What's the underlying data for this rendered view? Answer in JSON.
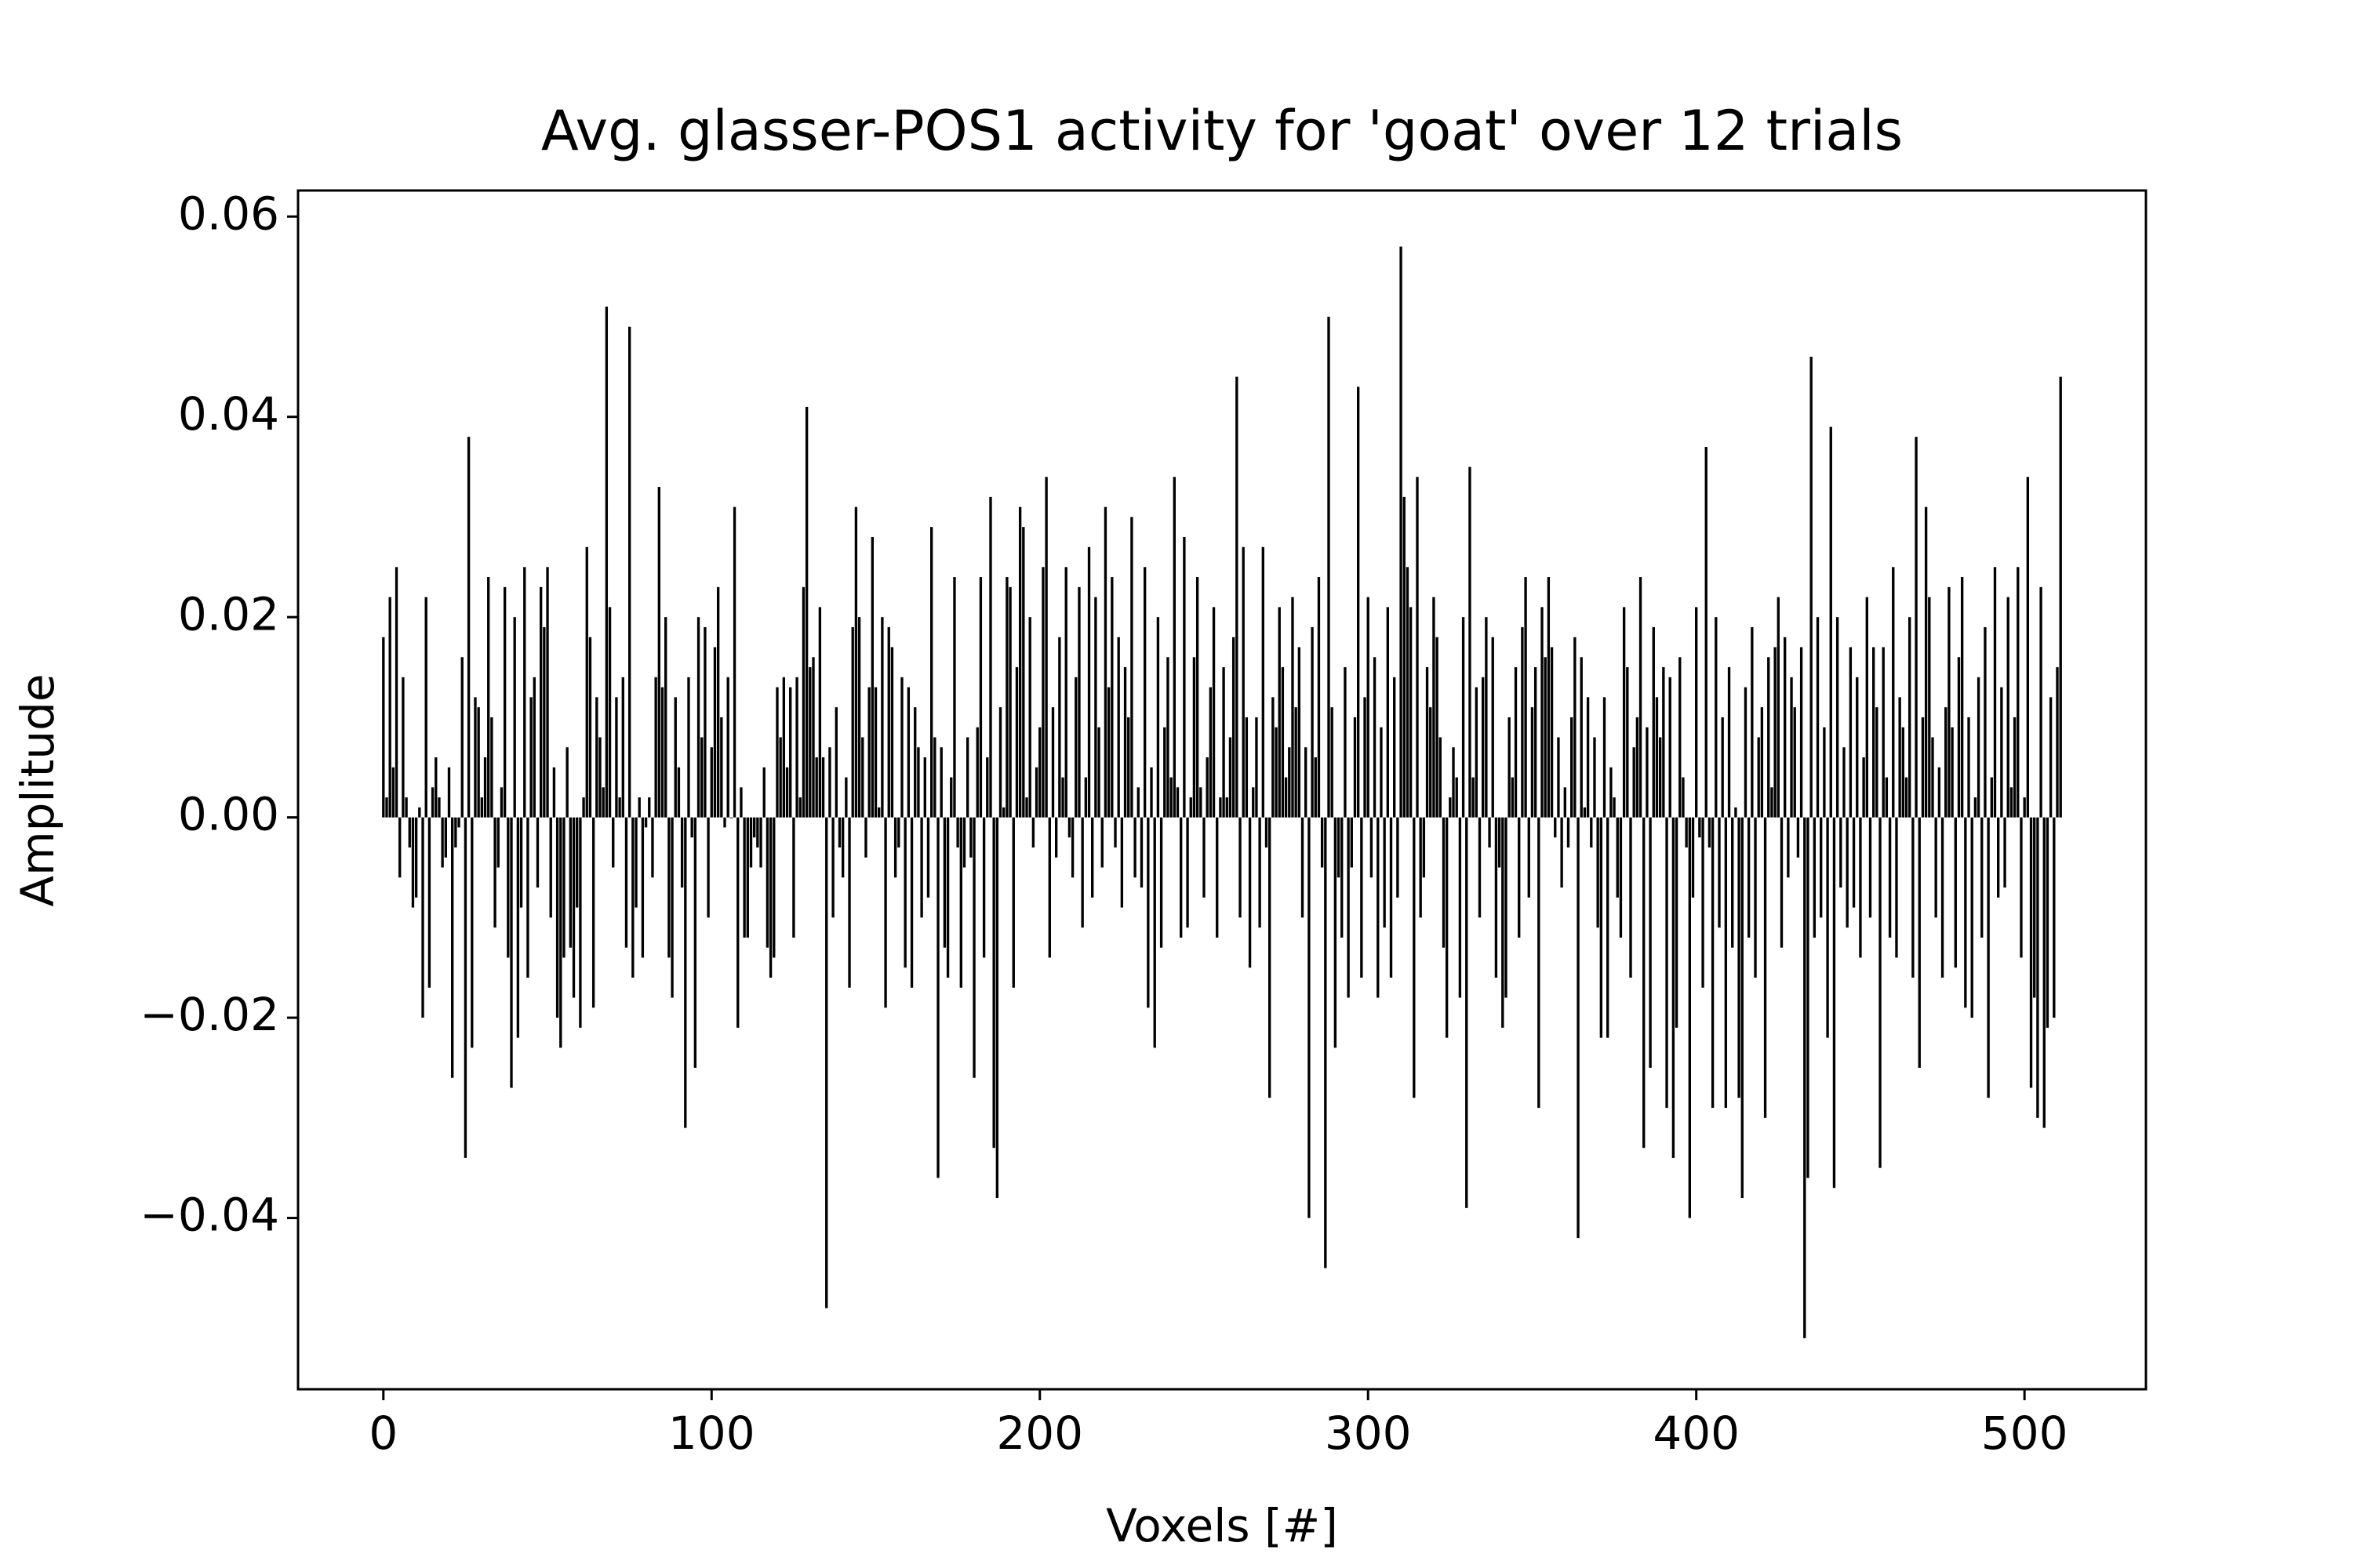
{
  "chart_data": {
    "type": "bar",
    "title": "Avg. glasser-POS1 activity for 'goat' over 12 trials",
    "x_label": "Voxels [#]",
    "y_label": "Amplitude",
    "color": "#000000",
    "x": [
      0,
      1,
      2,
      3,
      4,
      5,
      6,
      7,
      8,
      9,
      10,
      11,
      12,
      13,
      14,
      15,
      16,
      17,
      18,
      19,
      20,
      21,
      22,
      23,
      24,
      25,
      26,
      27,
      28,
      29,
      30,
      31,
      32,
      33,
      34,
      35,
      36,
      37,
      38,
      39,
      40,
      41,
      42,
      43,
      44,
      45,
      46,
      47,
      48,
      49,
      50,
      51,
      52,
      53,
      54,
      55,
      56,
      57,
      58,
      59,
      60,
      61,
      62,
      63,
      64,
      65,
      66,
      67,
      68,
      69,
      70,
      71,
      72,
      73,
      74,
      75,
      76,
      77,
      78,
      79,
      80,
      81,
      82,
      83,
      84,
      85,
      86,
      87,
      88,
      89,
      90,
      91,
      92,
      93,
      94,
      95,
      96,
      97,
      98,
      99,
      100,
      101,
      102,
      103,
      104,
      105,
      106,
      107,
      108,
      109,
      110,
      111,
      112,
      113,
      114,
      115,
      116,
      117,
      118,
      119,
      120,
      121,
      122,
      123,
      124,
      125,
      126,
      127,
      128,
      129,
      130,
      131,
      132,
      133,
      134,
      135,
      136,
      137,
      138,
      139,
      140,
      141,
      142,
      143,
      144,
      145,
      146,
      147,
      148,
      149,
      150,
      151,
      152,
      153,
      154,
      155,
      156,
      157,
      158,
      159,
      160,
      161,
      162,
      163,
      164,
      165,
      166,
      167,
      168,
      169,
      170,
      171,
      172,
      173,
      174,
      175,
      176,
      177,
      178,
      179,
      180,
      181,
      182,
      183,
      184,
      185,
      186,
      187,
      188,
      189,
      190,
      191,
      192,
      193,
      194,
      195,
      196,
      197,
      198,
      199,
      200,
      201,
      202,
      203,
      204,
      205,
      206,
      207,
      208,
      209,
      210,
      211,
      212,
      213,
      214,
      215,
      216,
      217,
      218,
      219,
      220,
      221,
      222,
      223,
      224,
      225,
      226,
      227,
      228,
      229,
      230,
      231,
      232,
      233,
      234,
      235,
      236,
      237,
      238,
      239,
      240,
      241,
      242,
      243,
      244,
      245,
      246,
      247,
      248,
      249,
      250,
      251,
      252,
      253,
      254,
      255,
      256,
      257,
      258,
      259,
      260,
      261,
      262,
      263,
      264,
      265,
      266,
      267,
      268,
      269,
      270,
      271,
      272,
      273,
      274,
      275,
      276,
      277,
      278,
      279,
      280,
      281,
      282,
      283,
      284,
      285,
      286,
      287,
      288,
      289,
      290,
      291,
      292,
      293,
      294,
      295,
      296,
      297,
      298,
      299,
      300,
      301,
      302,
      303,
      304,
      305,
      306,
      307,
      308,
      309,
      310,
      311,
      312,
      313,
      314,
      315,
      316,
      317,
      318,
      319,
      320,
      321,
      322,
      323,
      324,
      325,
      326,
      327,
      328,
      329,
      330,
      331,
      332,
      333,
      334,
      335,
      336,
      337,
      338,
      339,
      340,
      341,
      342,
      343,
      344,
      345,
      346,
      347,
      348,
      349,
      350,
      351,
      352,
      353,
      354,
      355,
      356,
      357,
      358,
      359,
      360,
      361,
      362,
      363,
      364,
      365,
      366,
      367,
      368,
      369,
      370,
      371,
      372,
      373,
      374,
      375,
      376,
      377,
      378,
      379,
      380,
      381,
      382,
      383,
      384,
      385,
      386,
      387,
      388,
      389,
      390,
      391,
      392,
      393,
      394,
      395,
      396,
      397,
      398,
      399,
      400,
      401,
      402,
      403,
      404,
      405,
      406,
      407,
      408,
      409,
      410,
      411,
      412,
      413,
      414,
      415,
      416,
      417,
      418,
      419,
      420,
      421,
      422,
      423,
      424,
      425,
      426,
      427,
      428,
      429,
      430,
      431,
      432,
      433,
      434,
      435,
      436,
      437,
      438,
      439,
      440,
      441,
      442,
      443,
      444,
      445,
      446,
      447,
      448,
      449,
      450,
      451,
      452,
      453,
      454,
      455,
      456,
      457,
      458,
      459,
      460,
      461,
      462,
      463,
      464,
      465,
      466,
      467,
      468,
      469,
      470,
      471,
      472,
      473,
      474,
      475,
      476,
      477,
      478,
      479,
      480,
      481,
      482,
      483,
      484,
      485,
      486,
      487,
      488,
      489,
      490,
      491,
      492,
      493,
      494,
      495,
      496,
      497,
      498,
      499,
      500,
      501,
      502,
      503,
      504,
      505,
      506,
      507,
      508,
      509,
      510,
      511
    ],
    "values": [
      0.018,
      0.002,
      0.022,
      0.005,
      0.025,
      -0.006,
      0.014,
      0.002,
      -0.003,
      -0.009,
      -0.008,
      0.001,
      -0.02,
      0.022,
      -0.017,
      0.003,
      0.006,
      0.002,
      -0.005,
      -0.004,
      0.005,
      -0.026,
      -0.003,
      -0.001,
      0.016,
      -0.034,
      0.038,
      -0.023,
      0.012,
      0.011,
      0.002,
      0.006,
      0.024,
      0.01,
      -0.011,
      -0.005,
      0.003,
      0.023,
      -0.014,
      -0.027,
      0.02,
      -0.022,
      -0.009,
      0.025,
      -0.016,
      0.012,
      0.014,
      -0.007,
      0.023,
      0.019,
      0.025,
      -0.01,
      0.005,
      -0.02,
      -0.023,
      -0.014,
      0.007,
      -0.013,
      -0.018,
      -0.009,
      -0.021,
      0.002,
      0.027,
      0.018,
      -0.019,
      0.012,
      0.008,
      0.003,
      0.051,
      0.021,
      -0.005,
      0.012,
      0.002,
      0.014,
      -0.013,
      0.049,
      -0.016,
      -0.009,
      0.002,
      -0.014,
      -0.001,
      0.002,
      -0.006,
      0.014,
      0.033,
      0.013,
      0.02,
      -0.014,
      -0.018,
      0.012,
      0.005,
      -0.007,
      -0.031,
      0.014,
      -0.002,
      -0.025,
      0.02,
      0.008,
      0.019,
      -0.01,
      0.007,
      0.017,
      0.023,
      0.01,
      -0.001,
      0.014,
      0.0,
      0.031,
      -0.021,
      0.003,
      -0.012,
      -0.012,
      -0.005,
      -0.002,
      -0.003,
      -0.005,
      0.005,
      -0.013,
      -0.016,
      -0.014,
      0.013,
      0.008,
      0.014,
      0.005,
      0.013,
      -0.012,
      0.014,
      0.002,
      0.023,
      0.041,
      0.015,
      0.016,
      0.006,
      0.021,
      0.006,
      -0.049,
      0.007,
      -0.01,
      0.011,
      -0.003,
      -0.006,
      0.004,
      -0.017,
      0.019,
      0.031,
      0.02,
      0.008,
      -0.004,
      0.013,
      0.028,
      0.013,
      0.001,
      0.02,
      -0.019,
      0.019,
      0.017,
      -0.006,
      -0.003,
      0.014,
      -0.015,
      0.013,
      -0.017,
      0.011,
      0.007,
      -0.01,
      0.006,
      -0.008,
      0.029,
      0.008,
      -0.036,
      0.007,
      -0.013,
      -0.016,
      0.004,
      0.024,
      -0.003,
      -0.017,
      -0.005,
      0.008,
      -0.004,
      -0.026,
      0.009,
      0.024,
      -0.014,
      0.006,
      0.032,
      -0.033,
      -0.038,
      0.011,
      0.001,
      0.024,
      0.023,
      -0.017,
      0.015,
      0.031,
      0.029,
      0.002,
      0.02,
      -0.003,
      0.005,
      0.009,
      0.025,
      0.034,
      -0.014,
      0.011,
      -0.004,
      0.018,
      0.004,
      0.025,
      -0.002,
      -0.006,
      0.014,
      0.023,
      -0.011,
      0.004,
      0.027,
      -0.008,
      0.022,
      0.009,
      -0.005,
      0.031,
      0.013,
      0.024,
      -0.003,
      0.018,
      -0.009,
      0.015,
      0.01,
      0.03,
      -0.006,
      0.003,
      -0.007,
      0.025,
      -0.019,
      0.005,
      -0.023,
      0.02,
      -0.013,
      0.009,
      0.016,
      0.004,
      0.034,
      0.003,
      -0.012,
      0.028,
      -0.011,
      0.002,
      0.016,
      0.024,
      0.003,
      -0.008,
      0.006,
      0.013,
      0.021,
      -0.012,
      0.002,
      0.015,
      0.002,
      0.008,
      0.018,
      0.044,
      -0.01,
      0.027,
      0.01,
      -0.015,
      0.003,
      0.01,
      -0.011,
      0.027,
      -0.003,
      -0.028,
      0.012,
      0.009,
      0.021,
      0.015,
      0.004,
      0.007,
      0.022,
      0.011,
      0.017,
      -0.01,
      0.007,
      -0.04,
      0.019,
      0.006,
      0.024,
      -0.005,
      -0.045,
      0.05,
      0.011,
      -0.023,
      -0.006,
      -0.012,
      0.015,
      -0.018,
      -0.005,
      0.01,
      0.043,
      -0.016,
      0.012,
      0.022,
      -0.006,
      0.016,
      -0.018,
      0.009,
      -0.011,
      0.021,
      -0.016,
      0.014,
      -0.008,
      0.057,
      0.032,
      0.025,
      0.021,
      -0.028,
      0.034,
      -0.01,
      -0.006,
      0.015,
      0.011,
      0.022,
      0.018,
      0.008,
      -0.013,
      -0.022,
      0.002,
      0.007,
      0.004,
      -0.018,
      0.02,
      -0.039,
      0.035,
      0.004,
      0.013,
      -0.01,
      0.014,
      0.02,
      -0.003,
      0.018,
      -0.016,
      -0.005,
      -0.021,
      -0.018,
      0.01,
      0.004,
      0.015,
      -0.012,
      0.019,
      0.024,
      -0.008,
      0.011,
      0.015,
      -0.029,
      0.021,
      0.016,
      0.024,
      0.017,
      -0.002,
      0.008,
      -0.007,
      0.003,
      -0.003,
      0.01,
      0.018,
      -0.042,
      0.016,
      0.001,
      0.012,
      -0.003,
      0.008,
      -0.011,
      -0.022,
      0.012,
      -0.022,
      0.005,
      0.002,
      -0.008,
      -0.012,
      0.021,
      0.015,
      -0.016,
      0.007,
      0.01,
      0.024,
      -0.033,
      0.009,
      -0.025,
      0.019,
      0.012,
      0.008,
      0.015,
      -0.029,
      0.014,
      -0.034,
      -0.021,
      0.016,
      0.004,
      -0.003,
      -0.04,
      -0.008,
      0.021,
      -0.002,
      -0.017,
      0.037,
      -0.003,
      -0.029,
      0.02,
      -0.011,
      0.01,
      -0.029,
      0.015,
      -0.013,
      0.001,
      -0.028,
      -0.038,
      0.013,
      -0.012,
      0.019,
      -0.016,
      0.008,
      0.011,
      -0.03,
      0.016,
      0.003,
      0.017,
      0.022,
      -0.013,
      0.018,
      -0.006,
      0.014,
      0.011,
      -0.004,
      0.017,
      -0.052,
      -0.036,
      0.046,
      -0.012,
      0.02,
      -0.01,
      0.009,
      -0.022,
      0.039,
      -0.037,
      0.02,
      -0.007,
      0.007,
      -0.011,
      0.017,
      -0.009,
      0.014,
      -0.014,
      0.006,
      0.022,
      -0.01,
      0.017,
      0.011,
      -0.035,
      0.017,
      0.004,
      -0.012,
      0.025,
      -0.014,
      0.012,
      0.009,
      0.004,
      0.02,
      -0.016,
      0.038,
      -0.025,
      0.01,
      0.031,
      0.022,
      0.008,
      -0.01,
      0.005,
      -0.016,
      0.011,
      0.023,
      0.009,
      -0.015,
      0.016,
      0.024,
      -0.019,
      0.01,
      -0.02,
      0.002,
      0.014,
      -0.012,
      0.019,
      -0.028,
      0.004,
      0.025,
      -0.008,
      0.013,
      -0.007,
      0.022,
      0.003,
      0.01,
      0.025,
      -0.014,
      0.002,
      0.034,
      -0.027,
      -0.018,
      -0.03,
      0.023,
      -0.031,
      -0.021,
      0.012,
      -0.02,
      0.015,
      0.044
    ],
    "xlim": [
      -26,
      537
    ],
    "xticks": [
      0,
      100,
      200,
      300,
      400,
      500
    ],
    "ylim": [
      -0.0571,
      0.0626
    ],
    "yticks": [
      {
        "value": -0.04,
        "label": "−0.04"
      },
      {
        "value": -0.02,
        "label": "−0.02"
      },
      {
        "value": 0,
        "label": "0.00"
      },
      {
        "value": 0.02,
        "label": "0.02"
      },
      {
        "value": 0.04,
        "label": "0.04"
      },
      {
        "value": 0.06,
        "label": "0.06"
      }
    ],
    "grid": false
  }
}
